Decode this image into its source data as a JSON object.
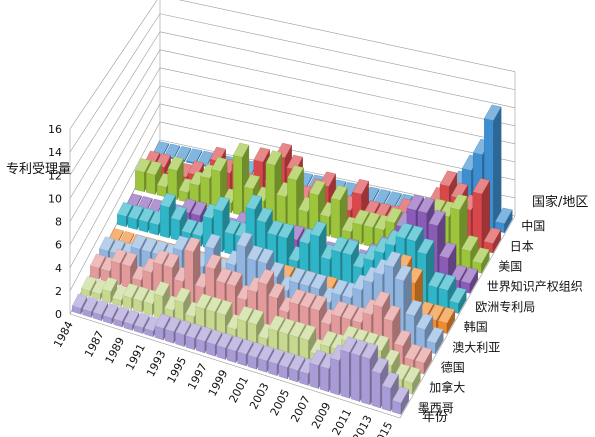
{
  "chart_data": {
    "type": "bar",
    "subtype": "3d-column",
    "title": "",
    "zlabel": "专利受理量",
    "xlabel": "年份",
    "ylabel": "国家/地区",
    "zlim": [
      0,
      16
    ],
    "zticks": [
      "0",
      "2",
      "4",
      "6",
      "8",
      "10",
      "12",
      "14",
      "16"
    ],
    "x_tick_labels": [
      "1984",
      "1987",
      "1989",
      "1991",
      "1993",
      "1995",
      "1997",
      "1999",
      "2001",
      "2003",
      "2005",
      "2007",
      "2009",
      "2011",
      "2013",
      "2015"
    ],
    "categories": [
      "1984",
      "1985",
      "1986",
      "1987",
      "1988",
      "1989",
      "1990",
      "1991",
      "1992",
      "1993",
      "1994",
      "1995",
      "1996",
      "1997",
      "1998",
      "1999",
      "2000",
      "2001",
      "2002",
      "2003",
      "2004",
      "2005",
      "2006",
      "2007",
      "2008",
      "2009",
      "2010",
      "2011",
      "2012",
      "2013",
      "2014",
      "2015"
    ],
    "grid": true,
    "series": [
      {
        "name": "中国",
        "color": "#3d8fd1",
        "values": [
          0,
          0,
          0,
          0,
          0,
          0,
          0,
          0,
          0,
          0,
          0,
          0,
          0,
          0,
          0,
          0,
          0,
          0,
          0,
          0,
          0,
          0,
          0,
          0,
          0,
          1,
          2,
          4,
          6,
          8,
          12,
          1
        ]
      },
      {
        "name": "日本",
        "color": "#d8484b",
        "values": [
          1,
          1,
          0.5,
          0.5,
          1,
          0.5,
          3,
          2,
          3,
          1,
          4,
          2,
          5,
          4,
          1,
          2,
          3,
          1,
          1,
          3,
          1,
          1,
          1,
          2,
          2,
          1,
          4,
          6,
          5,
          4,
          6,
          1
        ]
      },
      {
        "name": "美国",
        "color": "#9cc43c",
        "values": [
          2,
          2,
          1,
          3,
          1,
          2,
          3,
          4,
          1,
          6,
          3,
          2,
          6,
          3,
          5,
          2,
          4,
          2,
          4,
          1,
          2,
          2,
          2,
          3,
          2,
          3,
          3,
          5,
          5,
          6,
          2,
          1
        ]
      },
      {
        "name": "世界知识产权组织",
        "color": "#8a5cb8",
        "values": [
          0,
          0,
          0,
          0,
          0,
          1,
          1,
          0,
          0,
          0,
          1,
          0,
          1,
          0,
          0,
          1,
          1,
          1,
          0,
          0,
          1,
          0,
          1,
          2,
          3,
          5,
          7,
          7,
          6,
          3,
          1,
          1
        ]
      },
      {
        "name": "欧洲专利局",
        "color": "#2fb5c8",
        "values": [
          1,
          1,
          1,
          1,
          3,
          2,
          1,
          1,
          3,
          4,
          2,
          2,
          5,
          4,
          3,
          3,
          1,
          3,
          4,
          2,
          3,
          3,
          2,
          3,
          4,
          5,
          6,
          6,
          5,
          2,
          2,
          1
        ]
      },
      {
        "name": "韩国",
        "color": "#f08a2c",
        "values": [
          0,
          0,
          0,
          0,
          0,
          0,
          0,
          0,
          0,
          0,
          0,
          0,
          0,
          0,
          0,
          1,
          1,
          1,
          1,
          0,
          1,
          0,
          0,
          1,
          1,
          2,
          3,
          5,
          4,
          1,
          1,
          1
        ]
      },
      {
        "name": "澳大利亚",
        "color": "#8fb5e0",
        "values": [
          1,
          1,
          1,
          2,
          2,
          2,
          2,
          3,
          3,
          2,
          4,
          2,
          3,
          5,
          4,
          4,
          3,
          2,
          3,
          3,
          3,
          2,
          3,
          3,
          4,
          5,
          6,
          7,
          6,
          3,
          2,
          1
        ]
      },
      {
        "name": "德国",
        "color": "#e39a9a",
        "values": [
          1,
          1,
          2,
          2,
          1,
          2,
          3,
          3,
          2,
          5,
          2,
          4,
          3,
          3,
          2,
          3,
          4,
          3,
          2,
          3,
          3,
          3,
          2,
          3,
          3,
          3,
          4,
          5,
          4,
          2,
          1,
          1
        ]
      },
      {
        "name": "加拿大",
        "color": "#c6d98e",
        "values": [
          0.5,
          0.5,
          1,
          0.5,
          1,
          1,
          1,
          2,
          1,
          2,
          1,
          2,
          2,
          2,
          1,
          2,
          2,
          1,
          2,
          2,
          2,
          2,
          1,
          2,
          2,
          3,
          3,
          3,
          3,
          2,
          1,
          1
        ]
      },
      {
        "name": "墨西哥",
        "color": "#a99bd6",
        "values": [
          0.5,
          0.5,
          0.5,
          0.5,
          0.5,
          0.5,
          0.5,
          0.5,
          1,
          1,
          1,
          1,
          1,
          1,
          1,
          1,
          1,
          1,
          1,
          1,
          1,
          1,
          1,
          2,
          2,
          3,
          4,
          4,
          4,
          3,
          2,
          1
        ]
      }
    ]
  }
}
